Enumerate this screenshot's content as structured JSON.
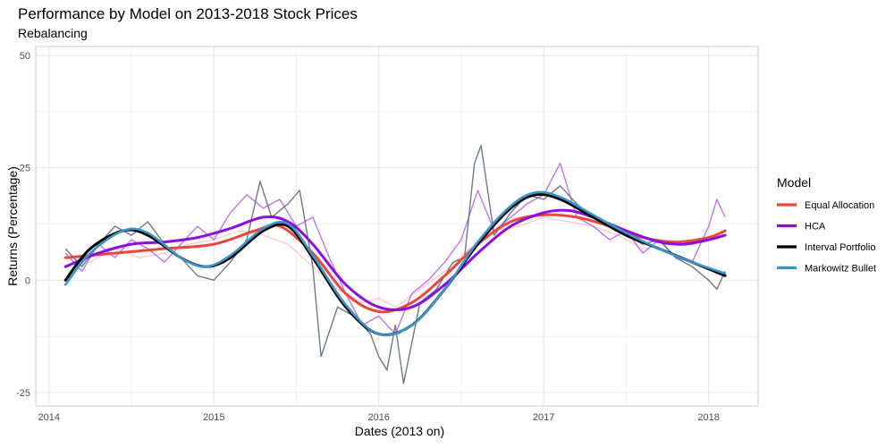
{
  "chart_data": {
    "type": "line",
    "title": "Performance by Model on 2013-2018 Stock Prices",
    "subtitle": "Rebalancing",
    "xlabel": "Dates (2013 on)",
    "ylabel": "Returns (Percentage)",
    "xlim": [
      2013.92,
      2018.3
    ],
    "ylim": [
      -28,
      52
    ],
    "x_ticks": [
      2014,
      2015,
      2016,
      2017,
      2018
    ],
    "x_tick_labels": [
      "2014",
      "2015",
      "2016",
      "2017",
      "2018"
    ],
    "y_ticks": [
      -25,
      0,
      25,
      50
    ],
    "y_tick_labels": [
      "-25",
      "0",
      "25",
      "50"
    ],
    "grid": true,
    "legend": {
      "title": "Model",
      "position": "right",
      "entries": [
        "Equal Allocation",
        "HCA",
        "Interval Portfolio",
        "Markowitz Bullet"
      ]
    },
    "series": [
      {
        "name": "Equal Allocation",
        "color": "#E8483F",
        "smooth": [
          [
            2014.1,
            5
          ],
          [
            2014.4,
            6
          ],
          [
            2014.7,
            7
          ],
          [
            2015.0,
            8
          ],
          [
            2015.25,
            11
          ],
          [
            2015.4,
            12
          ],
          [
            2015.6,
            6
          ],
          [
            2015.8,
            -3
          ],
          [
            2016.0,
            -7
          ],
          [
            2016.2,
            -5
          ],
          [
            2016.4,
            1
          ],
          [
            2016.6,
            8
          ],
          [
            2016.8,
            13
          ],
          [
            2017.0,
            14.5
          ],
          [
            2017.2,
            14
          ],
          [
            2017.4,
            12
          ],
          [
            2017.6,
            9.5
          ],
          [
            2017.8,
            8.5
          ],
          [
            2018.0,
            9.5
          ],
          [
            2018.1,
            11
          ]
        ],
        "raw": [
          [
            2014.1,
            6
          ],
          [
            2014.25,
            4
          ],
          [
            2014.4,
            7
          ],
          [
            2014.55,
            5
          ],
          [
            2014.7,
            6
          ],
          [
            2014.85,
            8
          ],
          [
            2015.0,
            9
          ],
          [
            2015.15,
            11
          ],
          [
            2015.3,
            10
          ],
          [
            2015.45,
            8
          ],
          [
            2015.6,
            3
          ],
          [
            2015.75,
            -2
          ],
          [
            2015.9,
            -5
          ],
          [
            2016.0,
            -4
          ],
          [
            2016.1,
            -6
          ],
          [
            2016.25,
            -2
          ],
          [
            2016.4,
            2
          ],
          [
            2016.55,
            7
          ],
          [
            2016.7,
            11
          ],
          [
            2016.85,
            12
          ],
          [
            2017.0,
            14
          ],
          [
            2017.15,
            13
          ],
          [
            2017.3,
            12
          ],
          [
            2017.45,
            10
          ],
          [
            2017.6,
            7
          ],
          [
            2017.75,
            8
          ],
          [
            2017.9,
            8
          ],
          [
            2018.05,
            10
          ]
        ]
      },
      {
        "name": "HCA",
        "color": "#8A0FE0",
        "smooth": [
          [
            2014.1,
            3
          ],
          [
            2014.3,
            6
          ],
          [
            2014.5,
            8
          ],
          [
            2014.7,
            8.5
          ],
          [
            2014.9,
            9.5
          ],
          [
            2015.1,
            11.5
          ],
          [
            2015.3,
            14
          ],
          [
            2015.45,
            13
          ],
          [
            2015.6,
            8
          ],
          [
            2015.8,
            -1
          ],
          [
            2016.0,
            -6
          ],
          [
            2016.2,
            -6
          ],
          [
            2016.4,
            -1
          ],
          [
            2016.6,
            6
          ],
          [
            2016.8,
            12
          ],
          [
            2017.0,
            15
          ],
          [
            2017.15,
            15.5
          ],
          [
            2017.3,
            14
          ],
          [
            2017.5,
            11
          ],
          [
            2017.7,
            8.5
          ],
          [
            2017.85,
            8
          ],
          [
            2018.0,
            9
          ],
          [
            2018.1,
            10
          ]
        ],
        "raw": [
          [
            2014.1,
            6
          ],
          [
            2014.2,
            2
          ],
          [
            2014.3,
            8
          ],
          [
            2014.4,
            5
          ],
          [
            2014.5,
            9
          ],
          [
            2014.6,
            7
          ],
          [
            2014.7,
            4
          ],
          [
            2014.8,
            8
          ],
          [
            2014.9,
            12
          ],
          [
            2015.0,
            9
          ],
          [
            2015.1,
            15
          ],
          [
            2015.2,
            19
          ],
          [
            2015.3,
            16
          ],
          [
            2015.4,
            18
          ],
          [
            2015.5,
            12
          ],
          [
            2015.6,
            14
          ],
          [
            2015.7,
            5
          ],
          [
            2015.8,
            -3
          ],
          [
            2015.9,
            -10
          ],
          [
            2016.0,
            -8
          ],
          [
            2016.1,
            -12
          ],
          [
            2016.2,
            -3
          ],
          [
            2016.3,
            0
          ],
          [
            2016.4,
            4
          ],
          [
            2016.5,
            9
          ],
          [
            2016.6,
            20
          ],
          [
            2016.7,
            11
          ],
          [
            2016.8,
            14
          ],
          [
            2016.9,
            17
          ],
          [
            2017.0,
            19
          ],
          [
            2017.1,
            26
          ],
          [
            2017.2,
            14
          ],
          [
            2017.3,
            12
          ],
          [
            2017.4,
            9
          ],
          [
            2017.5,
            11
          ],
          [
            2017.6,
            6
          ],
          [
            2017.7,
            9
          ],
          [
            2017.8,
            5
          ],
          [
            2017.9,
            4
          ],
          [
            2018.0,
            12
          ],
          [
            2018.05,
            18
          ],
          [
            2018.1,
            14
          ]
        ]
      },
      {
        "name": "Interval Portfolio",
        "color": "#000000",
        "smooth": [
          [
            2014.1,
            0
          ],
          [
            2014.25,
            7
          ],
          [
            2014.45,
            11
          ],
          [
            2014.6,
            10
          ],
          [
            2014.8,
            5
          ],
          [
            2014.95,
            3
          ],
          [
            2015.1,
            5
          ],
          [
            2015.3,
            11
          ],
          [
            2015.45,
            12
          ],
          [
            2015.6,
            5
          ],
          [
            2015.8,
            -6
          ],
          [
            2016.0,
            -12
          ],
          [
            2016.2,
            -10
          ],
          [
            2016.4,
            -2
          ],
          [
            2016.6,
            8
          ],
          [
            2016.8,
            16
          ],
          [
            2016.95,
            19
          ],
          [
            2017.1,
            18
          ],
          [
            2017.3,
            14
          ],
          [
            2017.5,
            10
          ],
          [
            2017.7,
            7
          ],
          [
            2017.9,
            4
          ],
          [
            2018.1,
            1
          ]
        ],
        "raw": [
          [
            2014.1,
            7
          ],
          [
            2014.2,
            3
          ],
          [
            2014.3,
            8
          ],
          [
            2014.4,
            12
          ],
          [
            2014.5,
            10
          ],
          [
            2014.6,
            13
          ],
          [
            2014.7,
            8
          ],
          [
            2014.8,
            5
          ],
          [
            2014.9,
            1
          ],
          [
            2015.0,
            0
          ],
          [
            2015.1,
            4
          ],
          [
            2015.2,
            9
          ],
          [
            2015.28,
            22
          ],
          [
            2015.35,
            14
          ],
          [
            2015.45,
            17
          ],
          [
            2015.52,
            20
          ],
          [
            2015.6,
            3
          ],
          [
            2015.65,
            -17
          ],
          [
            2015.75,
            -6
          ],
          [
            2015.85,
            -8
          ],
          [
            2015.95,
            -12
          ],
          [
            2016.0,
            -17
          ],
          [
            2016.05,
            -20
          ],
          [
            2016.1,
            -10
          ],
          [
            2016.15,
            -23
          ],
          [
            2016.25,
            -5
          ],
          [
            2016.35,
            -2
          ],
          [
            2016.45,
            4
          ],
          [
            2016.52,
            5
          ],
          [
            2016.58,
            26
          ],
          [
            2016.62,
            30
          ],
          [
            2016.7,
            10
          ],
          [
            2016.8,
            15
          ],
          [
            2016.9,
            19
          ],
          [
            2017.0,
            18
          ],
          [
            2017.1,
            21
          ],
          [
            2017.2,
            17
          ],
          [
            2017.3,
            14
          ],
          [
            2017.4,
            12
          ],
          [
            2017.5,
            10
          ],
          [
            2017.6,
            8
          ],
          [
            2017.7,
            9
          ],
          [
            2017.8,
            5
          ],
          [
            2017.9,
            3
          ],
          [
            2018.0,
            0
          ],
          [
            2018.05,
            -2
          ],
          [
            2018.1,
            2
          ]
        ]
      },
      {
        "name": "Markowitz Bullet",
        "color": "#3A96C8",
        "smooth": [
          [
            2014.1,
            -1
          ],
          [
            2014.25,
            6
          ],
          [
            2014.45,
            11
          ],
          [
            2014.6,
            10.5
          ],
          [
            2014.8,
            5
          ],
          [
            2014.95,
            3
          ],
          [
            2015.1,
            5.5
          ],
          [
            2015.3,
            11.5
          ],
          [
            2015.45,
            12.5
          ],
          [
            2015.6,
            5.5
          ],
          [
            2015.8,
            -5.5
          ],
          [
            2016.0,
            -12
          ],
          [
            2016.2,
            -10
          ],
          [
            2016.4,
            -2
          ],
          [
            2016.6,
            8.5
          ],
          [
            2016.8,
            16.5
          ],
          [
            2016.95,
            19.5
          ],
          [
            2017.1,
            18.5
          ],
          [
            2017.3,
            14.5
          ],
          [
            2017.5,
            10.5
          ],
          [
            2017.7,
            7
          ],
          [
            2017.9,
            4
          ],
          [
            2018.1,
            1.5
          ]
        ]
      }
    ]
  }
}
